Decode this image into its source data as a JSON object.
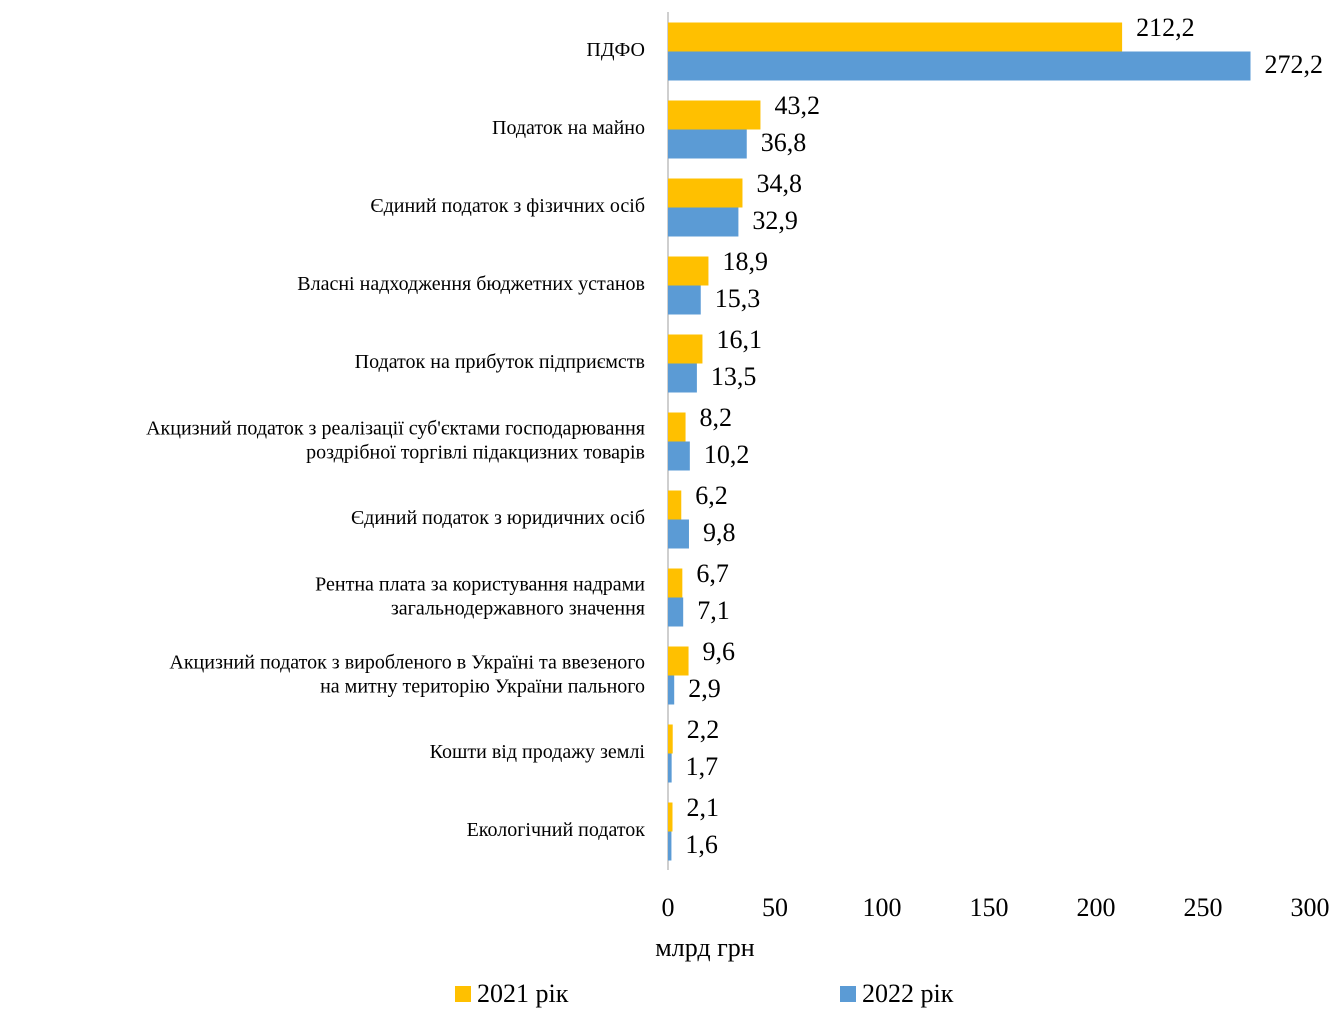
{
  "chart_data": {
    "type": "bar",
    "orientation": "horizontal",
    "categories": [
      "ПДФО",
      "Податок на майно",
      "Єдиний податок з фізичних осіб",
      "Власні надходження бюджетних установ",
      "Податок на прибуток підприємств",
      "Акцизний податок з реалізації суб'єктами господарювання\nроздрібної торгівлі підакцизних товарів",
      "Єдиний податок з юридичних осіб",
      "Рентна плата за користування надрами\nзагальнодержавного значення",
      "Акцизний податок з виробленого в Україні та ввезеного\nна митну територію України пального",
      "Кошти від продажу землі",
      "Екологічний податок"
    ],
    "series": [
      {
        "name": "2021 рік",
        "color": "#FFC000",
        "values": [
          212.2,
          43.2,
          34.8,
          18.9,
          16.1,
          8.2,
          6.2,
          6.7,
          9.6,
          2.2,
          2.1
        ],
        "value_labels": [
          "212,2",
          "43,2",
          "34,8",
          "18,9",
          "16,1",
          "8,2",
          "6,2",
          "6,7",
          "9,6",
          "2,2",
          "2,1"
        ]
      },
      {
        "name": "2022 рік",
        "color": "#5B9BD5",
        "values": [
          272.2,
          36.8,
          32.9,
          15.3,
          13.5,
          10.2,
          9.8,
          7.1,
          2.9,
          1.7,
          1.6
        ],
        "value_labels": [
          "272,2",
          "36,8",
          "32,9",
          "15,3",
          "13,5",
          "10,2",
          "9,8",
          "7,1",
          "2,9",
          "1,7",
          "1,6"
        ]
      }
    ],
    "x_label": "млрд грн",
    "xlim": [
      0,
      300
    ],
    "xticks": [
      0,
      50,
      100,
      150,
      200,
      250,
      300
    ],
    "grid": false,
    "legend": "bottom"
  }
}
